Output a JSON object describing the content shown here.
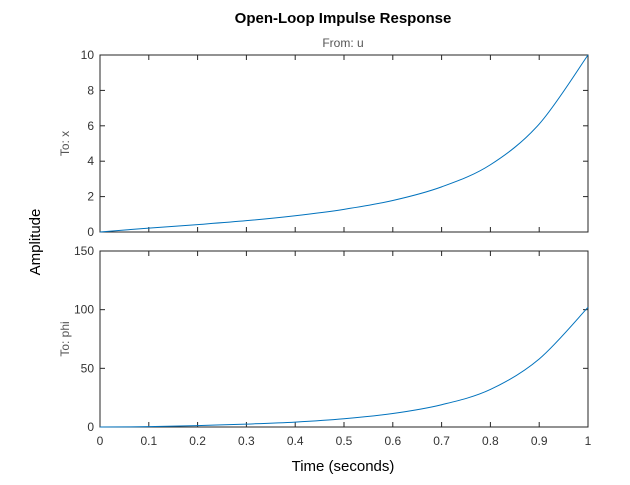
{
  "chart_data": {
    "type": "line",
    "title": "Open-Loop Impulse Response",
    "subtitle": "From: u",
    "xlabel": "Time (seconds)",
    "ylabel": "Amplitude",
    "xlim": [
      0,
      1
    ],
    "x_ticks": [
      "0",
      "0.1",
      "0.2",
      "0.3",
      "0.4",
      "0.5",
      "0.6",
      "0.7",
      "0.8",
      "0.9",
      "1"
    ],
    "grid": false,
    "series_color": "#0072bd",
    "panels": [
      {
        "row_label": "To: x",
        "ylim": [
          0,
          10
        ],
        "y_ticks": [
          "0",
          "2",
          "4",
          "6",
          "8",
          "10"
        ],
        "x": [
          0,
          0.1,
          0.2,
          0.3,
          0.4,
          0.5,
          0.6,
          0.7,
          0.8,
          0.9,
          1.0
        ],
        "y": [
          0.0,
          0.22,
          0.42,
          0.64,
          0.92,
          1.28,
          1.78,
          2.55,
          3.8,
          6.1,
          10.0
        ]
      },
      {
        "row_label": "To: phi",
        "ylim": [
          0,
          150
        ],
        "y_ticks": [
          "0",
          "50",
          "100",
          "150"
        ],
        "x": [
          0,
          0.1,
          0.2,
          0.3,
          0.4,
          0.5,
          0.6,
          0.7,
          0.8,
          0.9,
          1.0
        ],
        "y": [
          0.0,
          0.3,
          1.2,
          2.5,
          4.2,
          7.0,
          11.5,
          19.0,
          32.0,
          58.0,
          102.0
        ]
      }
    ]
  }
}
